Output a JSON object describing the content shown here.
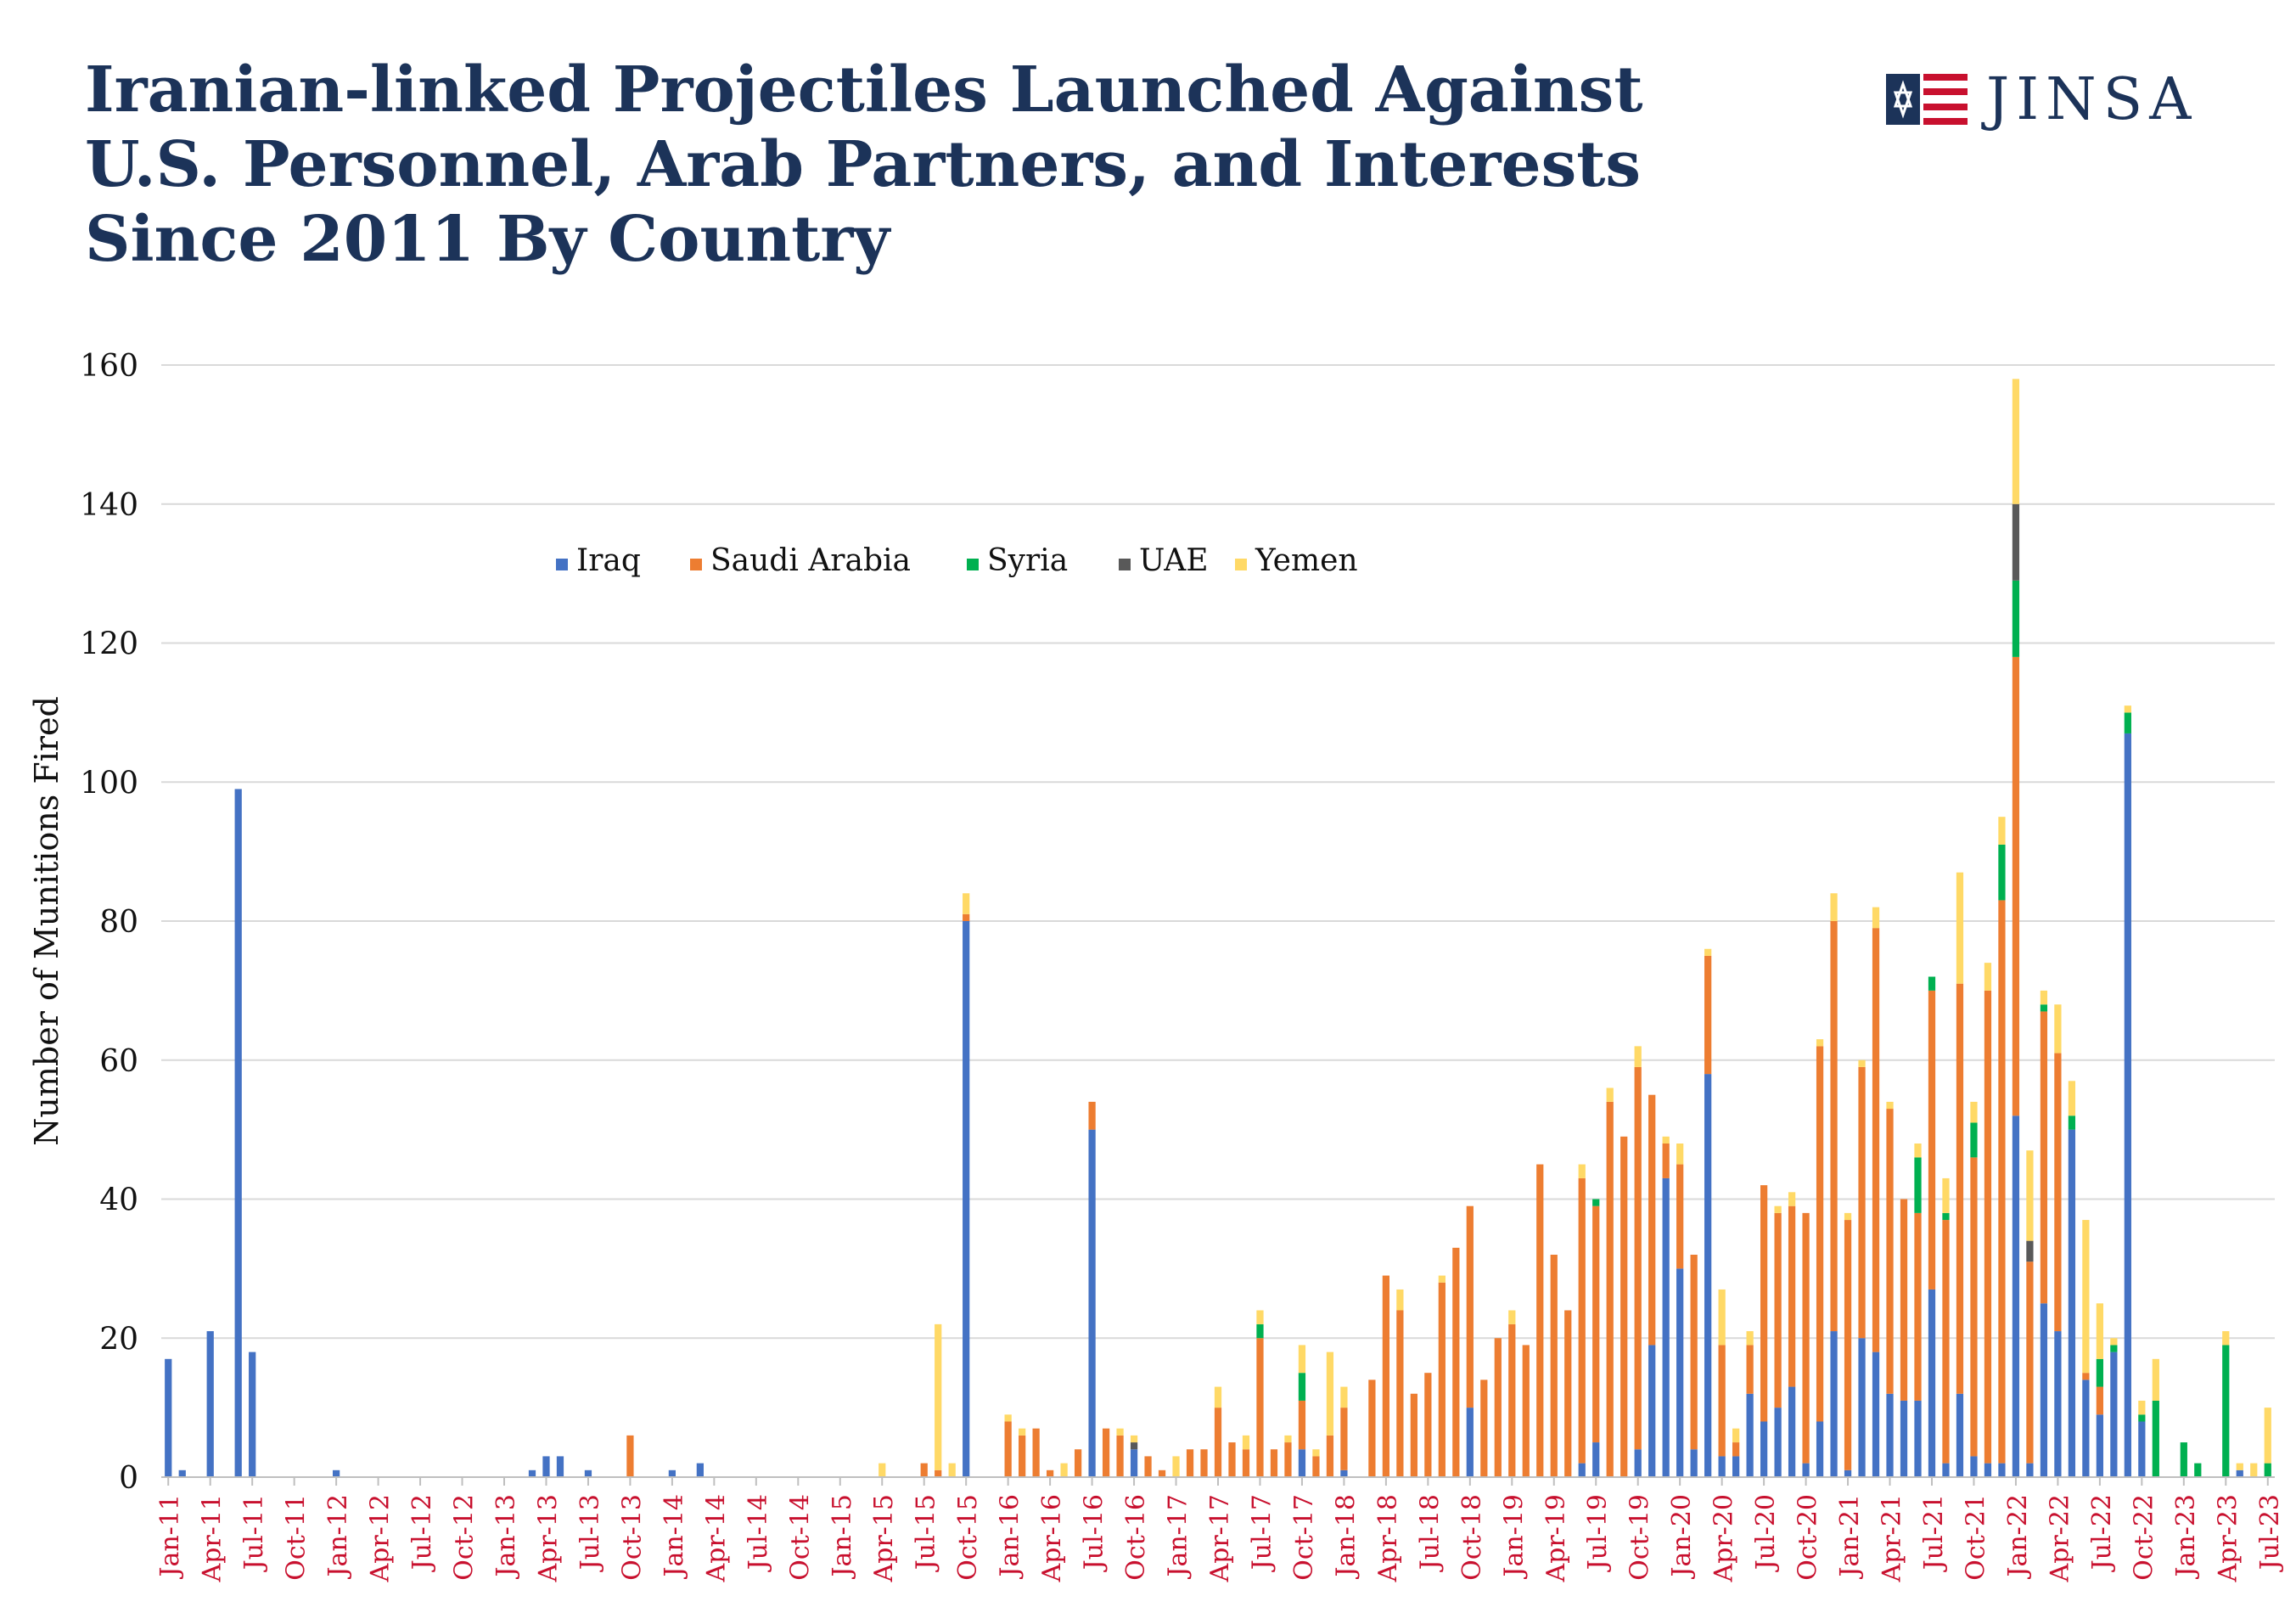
{
  "title_lines": [
    "Iranian-linked Projectiles Launched Against",
    "U.S. Personnel, Arab Partners, and Interests",
    "Since 2011 By Country"
  ],
  "brand": {
    "name": "JINSA",
    "logo_icon": "star-of-david-flag-icon"
  },
  "colors": {
    "title": "#1c3359",
    "tick_label": "#c8102e",
    "grid": "#d9d9d9"
  },
  "chart_data": {
    "type": "bar",
    "stacked": true,
    "title": "Iranian-linked Projectiles Launched Against U.S. Personnel, Arab Partners, and Interests Since 2011 By Country",
    "ylabel": "Number of Munitions Fired",
    "xlabel": "",
    "ylim": [
      0,
      160
    ],
    "yticks": [
      0,
      20,
      40,
      60,
      80,
      100,
      120,
      140,
      160
    ],
    "grid": true,
    "legend_position": "top-left",
    "x_start": "2011-01",
    "x_end": "2023-07",
    "x_tick_labels": [
      "Jan-11",
      "Apr-11",
      "Jul-11",
      "Oct-11",
      "Jan-12",
      "Apr-12",
      "Jul-12",
      "Oct-12",
      "Jan-13",
      "Apr-13",
      "Jul-13",
      "Oct-13",
      "Jan-14",
      "Apr-14",
      "Jul-14",
      "Oct-14",
      "Jan-15",
      "Apr-15",
      "Jul-15",
      "Oct-15",
      "Jan-16",
      "Apr-16",
      "Jul-16",
      "Oct-16",
      "Jan-17",
      "Apr-17",
      "Jul-17",
      "Oct-17",
      "Jan-18",
      "Apr-18",
      "Jul-18",
      "Oct-18",
      "Jan-19",
      "Apr-19",
      "Jul-19",
      "Oct-19",
      "Jan-20",
      "Apr-20",
      "Jul-20",
      "Oct-20",
      "Jan-21",
      "Apr-21",
      "Jul-21",
      "Oct-21",
      "Jan-22",
      "Apr-22",
      "Jul-22",
      "Oct-22",
      "Jan-23",
      "Apr-23",
      "Jul-23"
    ],
    "series": [
      {
        "name": "Iraq",
        "color": "#4472c4",
        "values": {
          "2011-01": 17,
          "2011-02": 1,
          "2011-04": 21,
          "2011-06": 99,
          "2011-07": 18,
          "2012-01": 1,
          "2013-03": 1,
          "2013-04": 3,
          "2013-05": 3,
          "2013-07": 1,
          "2014-01": 1,
          "2014-03": 2,
          "2015-10": 80,
          "2016-07": 50,
          "2016-10": 4,
          "2017-07": 0,
          "2017-10": 4,
          "2018-01": 1,
          "2018-10": 10,
          "2019-06": 2,
          "2019-07": 5,
          "2019-10": 4,
          "2019-11": 19,
          "2019-12": 43,
          "2020-01": 30,
          "2020-02": 4,
          "2020-03": 58,
          "2020-04": 3,
          "2020-05": 3,
          "2020-06": 12,
          "2020-07": 8,
          "2020-08": 10,
          "2020-09": 13,
          "2020-10": 2,
          "2020-11": 8,
          "2020-12": 21,
          "2021-01": 1,
          "2021-02": 20,
          "2021-03": 18,
          "2021-04": 12,
          "2021-05": 11,
          "2021-06": 11,
          "2021-07": 27,
          "2021-08": 2,
          "2021-09": 12,
          "2021-10": 3,
          "2021-11": 2,
          "2021-12": 2,
          "2022-01": 52,
          "2022-02": 2,
          "2022-03": 25,
          "2022-04": 21,
          "2022-05": 50,
          "2022-06": 14,
          "2022-07": 9,
          "2022-08": 18,
          "2022-09": 107,
          "2022-10": 8,
          "2022-11": 0,
          "2023-03": 0,
          "2023-05": 1
        }
      },
      {
        "name": "Saudi Arabia",
        "color": "#ed7d31",
        "values": {
          "2013-10": 6,
          "2015-07": 2,
          "2015-08": 1,
          "2015-10": 1,
          "2016-01": 8,
          "2016-02": 6,
          "2016-03": 7,
          "2016-04": 1,
          "2016-06": 4,
          "2016-07": 4,
          "2016-08": 7,
          "2016-09": 6,
          "2016-10": 0,
          "2016-11": 3,
          "2016-12": 1,
          "2017-02": 4,
          "2017-03": 4,
          "2017-04": 10,
          "2017-05": 5,
          "2017-06": 4,
          "2017-07": 20,
          "2017-08": 4,
          "2017-09": 5,
          "2017-10": 7,
          "2017-11": 3,
          "2017-12": 6,
          "2018-01": 9,
          "2018-03": 14,
          "2018-04": 29,
          "2018-05": 24,
          "2018-06": 12,
          "2018-07": 15,
          "2018-08": 28,
          "2018-09": 33,
          "2018-10": 29,
          "2018-11": 14,
          "2018-12": 20,
          "2019-01": 22,
          "2019-02": 19,
          "2019-03": 45,
          "2019-04": 32,
          "2019-05": 24,
          "2019-06": 41,
          "2019-07": 34,
          "2019-08": 54,
          "2019-09": 49,
          "2019-10": 55,
          "2019-11": 36,
          "2019-12": 5,
          "2020-01": 15,
          "2020-02": 28,
          "2020-03": 17,
          "2020-04": 16,
          "2020-05": 2,
          "2020-06": 7,
          "2020-07": 34,
          "2020-08": 28,
          "2020-09": 26,
          "2020-10": 36,
          "2020-11": 54,
          "2020-12": 59,
          "2021-01": 36,
          "2021-02": 39,
          "2021-03": 61,
          "2021-04": 41,
          "2021-05": 29,
          "2021-06": 27,
          "2021-07": 43,
          "2021-08": 35,
          "2021-09": 59,
          "2021-10": 43,
          "2021-11": 68,
          "2021-12": 81,
          "2022-01": 66,
          "2022-02": 29,
          "2022-03": 42,
          "2022-04": 40,
          "2022-05": 0,
          "2022-06": 1,
          "2022-07": 4
        }
      },
      {
        "name": "Syria",
        "color": "#00b050",
        "values": {
          "2017-07": 2,
          "2017-10": 4,
          "2019-07": 1,
          "2021-06": 8,
          "2021-07": 2,
          "2021-08": 1,
          "2021-10": 5,
          "2021-12": 8,
          "2022-01": 11,
          "2022-03": 1,
          "2022-05": 2,
          "2022-07": 4,
          "2022-08": 1,
          "2022-09": 3,
          "2022-10": 1,
          "2022-11": 11,
          "2023-01": 5,
          "2023-02": 2,
          "2023-04": 19,
          "2023-07": 2
        }
      },
      {
        "name": "UAE",
        "color": "#595959",
        "values": {
          "2016-10": 1,
          "2022-01": 11,
          "2022-02": 3
        }
      },
      {
        "name": "Yemen",
        "color": "#ffd966",
        "values": {
          "2015-04": 2,
          "2015-08": 21,
          "2015-09": 2,
          "2015-10": 3,
          "2016-01": 1,
          "2016-02": 1,
          "2016-05": 2,
          "2016-09": 1,
          "2016-10": 1,
          "2017-01": 3,
          "2017-04": 3,
          "2017-06": 2,
          "2017-07": 2,
          "2017-09": 1,
          "2017-10": 4,
          "2017-11": 1,
          "2017-12": 12,
          "2018-01": 3,
          "2018-05": 3,
          "2018-08": 1,
          "2019-01": 2,
          "2019-06": 2,
          "2019-08": 2,
          "2019-10": 3,
          "2019-12": 1,
          "2020-01": 3,
          "2020-03": 1,
          "2020-04": 8,
          "2020-05": 2,
          "2020-06": 2,
          "2020-08": 1,
          "2020-09": 2,
          "2020-11": 1,
          "2020-12": 4,
          "2021-01": 1,
          "2021-02": 1,
          "2021-03": 3,
          "2021-04": 1,
          "2021-06": 2,
          "2021-08": 5,
          "2021-09": 16,
          "2021-10": 3,
          "2021-11": 4,
          "2021-12": 4,
          "2022-01": 18,
          "2022-02": 13,
          "2022-03": 2,
          "2022-04": 7,
          "2022-05": 5,
          "2022-06": 22,
          "2022-07": 8,
          "2022-08": 1,
          "2022-09": 1,
          "2022-10": 2,
          "2022-11": 6,
          "2023-01": 0,
          "2023-03": 0,
          "2023-04": 2,
          "2023-05": 1,
          "2023-06": 2,
          "2023-07": 8
        }
      }
    ]
  }
}
